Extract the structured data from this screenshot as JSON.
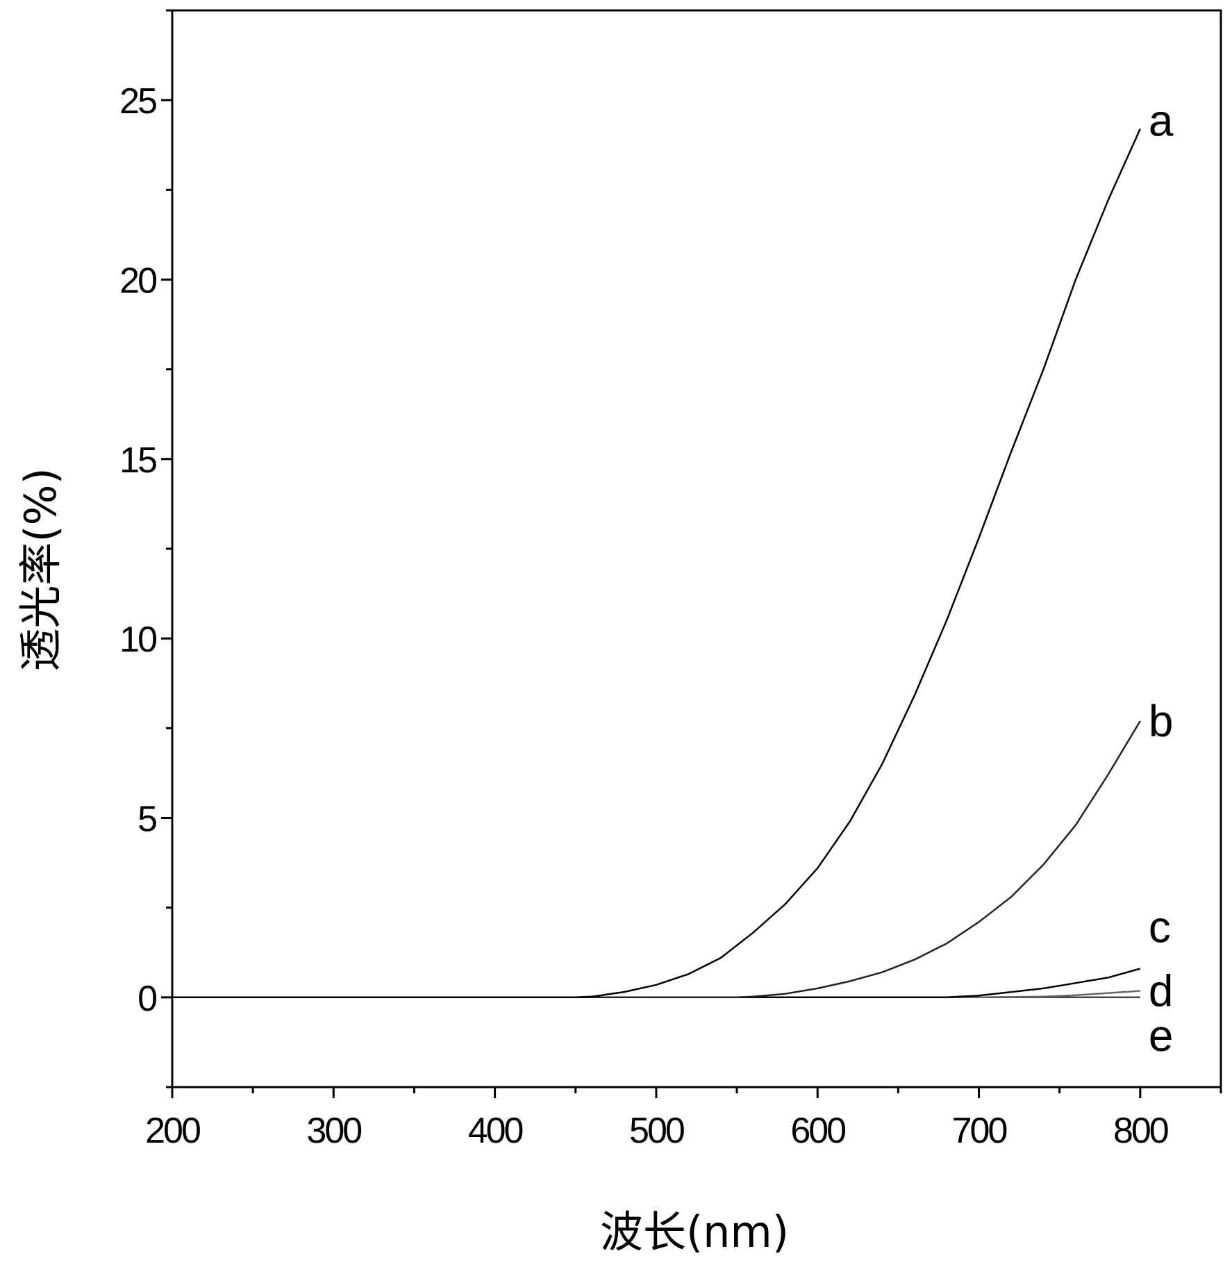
{
  "chart_data": {
    "type": "line",
    "xlabel": "波长(nm)",
    "ylabel": "透光率(%)",
    "xlim": [
      200,
      850
    ],
    "ylim": [
      -2.5,
      27.5
    ],
    "x_ticks": [
      200,
      300,
      400,
      500,
      600,
      700,
      800
    ],
    "x_tick_labels": [
      "200",
      "300",
      "400",
      "500",
      "600",
      "700",
      "800"
    ],
    "x_minor_ticks": [
      250,
      350,
      450,
      550,
      650,
      750,
      850
    ],
    "y_ticks": [
      0,
      5,
      10,
      15,
      20,
      25
    ],
    "y_tick_labels": [
      "0",
      "5",
      "10",
      "15",
      "20",
      "25"
    ],
    "y_minor_ticks": [
      -2.5,
      2.5,
      7.5,
      12.5,
      17.5,
      22.5,
      27.5
    ],
    "grid": false,
    "legend": "none",
    "series": [
      {
        "name": "a",
        "color": "#000000",
        "x": [
          200,
          300,
          400,
          450,
          460,
          480,
          500,
          520,
          540,
          560,
          580,
          600,
          620,
          640,
          660,
          680,
          700,
          720,
          740,
          760,
          780,
          800
        ],
        "y": [
          0,
          0,
          0,
          0,
          0.02,
          0.15,
          0.35,
          0.65,
          1.1,
          1.8,
          2.6,
          3.6,
          4.9,
          6.5,
          8.4,
          10.5,
          12.8,
          15.2,
          17.5,
          20.0,
          22.2,
          24.2
        ]
      },
      {
        "name": "b",
        "color": "#222222",
        "x": [
          200,
          300,
          400,
          500,
          550,
          560,
          580,
          600,
          620,
          640,
          660,
          680,
          700,
          720,
          740,
          760,
          780,
          800
        ],
        "y": [
          0,
          0,
          0,
          0,
          0,
          0.02,
          0.1,
          0.25,
          0.45,
          0.7,
          1.05,
          1.5,
          2.1,
          2.8,
          3.7,
          4.8,
          6.2,
          7.7
        ]
      },
      {
        "name": "c",
        "color": "#000000",
        "x": [
          200,
          300,
          400,
          500,
          600,
          680,
          700,
          720,
          740,
          760,
          780,
          800
        ],
        "y": [
          0,
          0,
          0,
          0,
          0,
          0,
          0.05,
          0.15,
          0.25,
          0.4,
          0.55,
          0.8
        ]
      },
      {
        "name": "d",
        "color": "#666666",
        "x": [
          200,
          300,
          400,
          500,
          600,
          700,
          740,
          760,
          780,
          800
        ],
        "y": [
          0,
          0,
          0,
          0,
          0,
          0,
          0.02,
          0.06,
          0.12,
          0.18
        ]
      },
      {
        "name": "e",
        "color": "#444444",
        "x": [
          200,
          300,
          400,
          500,
          600,
          700,
          800
        ],
        "y": [
          0,
          0,
          0,
          0,
          0,
          0,
          0
        ]
      }
    ]
  }
}
